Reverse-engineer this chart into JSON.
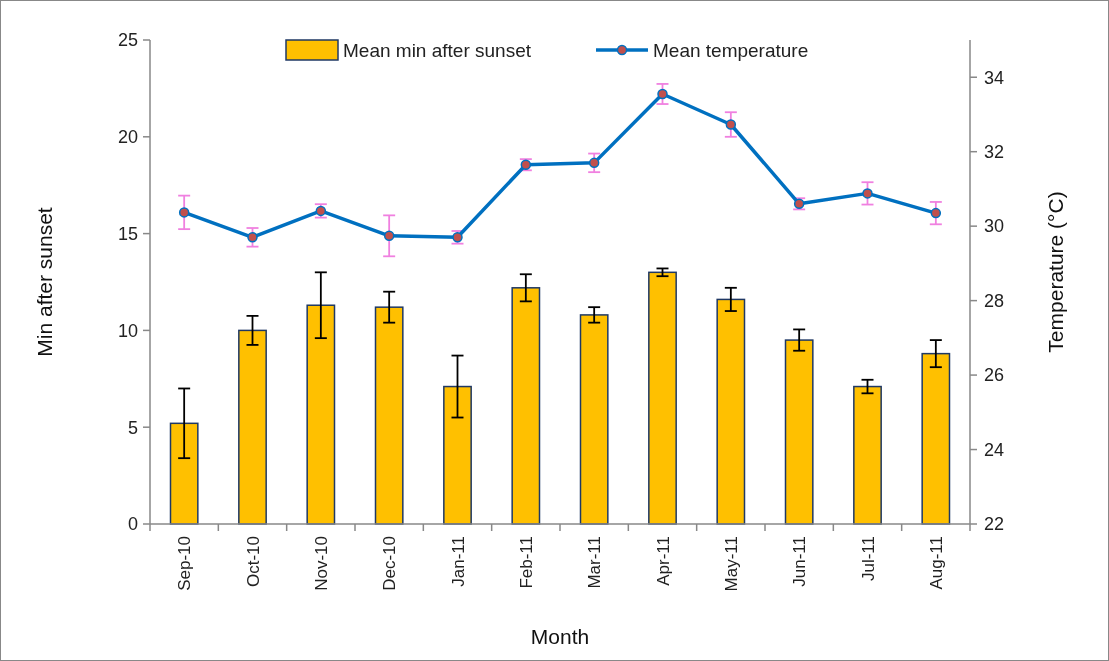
{
  "chart_data": {
    "type": "bar",
    "xlabel": "Month",
    "ylabel": "Min after sunset",
    "y2label": "Temperature (°C)",
    "categories": [
      "Sep-10",
      "Oct-10",
      "Nov-10",
      "Dec-10",
      "Jan-11",
      "Feb-11",
      "Mar-11",
      "Apr-11",
      "May-11",
      "Jun-11",
      "Jul-11",
      "Aug-11"
    ],
    "series": [
      {
        "name": "Mean min after sunset",
        "color": "#ffc000",
        "values": [
          5.2,
          10.0,
          11.3,
          11.2,
          7.1,
          12.2,
          10.8,
          13.0,
          11.6,
          9.5,
          7.1,
          8.8
        ],
        "errors": [
          1.8,
          0.75,
          1.7,
          0.8,
          1.6,
          0.7,
          0.4,
          0.2,
          0.6,
          0.55,
          0.35,
          0.7
        ]
      },
      {
        "name": "Mean temperature",
        "type": "line",
        "axis": "y2",
        "color": "#0070c0",
        "marker": "circle",
        "values": [
          30.37,
          29.7,
          30.41,
          29.74,
          29.7,
          31.65,
          31.7,
          33.55,
          32.73,
          30.6,
          30.88,
          30.35
        ],
        "errors": [
          0.45,
          0.25,
          0.18,
          0.55,
          0.17,
          0.15,
          0.25,
          0.27,
          0.33,
          0.15,
          0.3,
          0.3
        ]
      }
    ],
    "ylim": [
      0,
      25
    ],
    "yticks": [
      0,
      5,
      10,
      15,
      20,
      25
    ],
    "y2lim": [
      22,
      35
    ],
    "y2ticks": [
      22,
      24,
      26,
      28,
      30,
      32,
      34
    ],
    "grid": false,
    "legend": "top"
  }
}
